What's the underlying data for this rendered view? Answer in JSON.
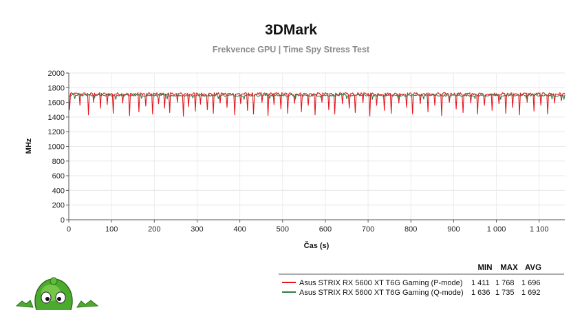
{
  "chart_data": {
    "type": "line",
    "title": "3DMark",
    "subtitle": "Frekvence GPU | Time Spy Stress Test",
    "xlabel": "Čas (s)",
    "ylabel": "MHz",
    "xlim": [
      0,
      1160
    ],
    "ylim": [
      0,
      2000
    ],
    "x_ticks": [
      0,
      100,
      200,
      300,
      400,
      500,
      600,
      700,
      800,
      900,
      1000,
      1100
    ],
    "x_tick_labels": [
      "0",
      "100",
      "200",
      "300",
      "400",
      "500",
      "600",
      "700",
      "800",
      "900",
      "1 000",
      "1 100"
    ],
    "y_ticks": [
      0,
      200,
      400,
      600,
      800,
      1000,
      1200,
      1400,
      1600,
      1800,
      2000
    ],
    "y_tick_labels": [
      "0",
      "200",
      "400",
      "600",
      "800",
      "1000",
      "1200",
      "1400",
      "1600",
      "1800",
      "2000"
    ],
    "grid": true,
    "legend_position": "bottom-right",
    "legend_columns": [
      "MIN",
      "MAX",
      "AVG"
    ],
    "series": [
      {
        "name": "Asus STRIX RX 5600 XT T6G Gaming (P-mode)",
        "color": "#e8141b",
        "min": 1411,
        "max": 1768,
        "avg": 1696,
        "min_label": "1 411",
        "max_label": "1 768",
        "avg_label": "1 696",
        "x_range": [
          0,
          1160
        ],
        "x_step": 2,
        "baseline": 1715,
        "jitter": 18,
        "dips": [
          [
            3,
            1500
          ],
          [
            27,
            1560
          ],
          [
            47,
            1430
          ],
          [
            58,
            1600
          ],
          [
            74,
            1520
          ],
          [
            90,
            1570
          ],
          [
            105,
            1450
          ],
          [
            127,
            1590
          ],
          [
            143,
            1420
          ],
          [
            164,
            1470
          ],
          [
            180,
            1550
          ],
          [
            197,
            1440
          ],
          [
            210,
            1580
          ],
          [
            225,
            1520
          ],
          [
            236,
            1460
          ],
          [
            255,
            1600
          ],
          [
            268,
            1410
          ],
          [
            281,
            1540
          ],
          [
            297,
            1480
          ],
          [
            308,
            1575
          ],
          [
            325,
            1500
          ],
          [
            339,
            1450
          ],
          [
            354,
            1590
          ],
          [
            371,
            1530
          ],
          [
            388,
            1430
          ],
          [
            402,
            1580
          ],
          [
            418,
            1490
          ],
          [
            433,
            1440
          ],
          [
            452,
            1600
          ],
          [
            466,
            1420
          ],
          [
            481,
            1570
          ],
          [
            497,
            1510
          ],
          [
            513,
            1450
          ],
          [
            529,
            1585
          ],
          [
            545,
            1470
          ],
          [
            560,
            1560
          ],
          [
            576,
            1430
          ],
          [
            592,
            1600
          ],
          [
            608,
            1500
          ],
          [
            622,
            1440
          ],
          [
            640,
            1580
          ],
          [
            656,
            1520
          ],
          [
            671,
            1460
          ],
          [
            688,
            1595
          ],
          [
            705,
            1410
          ],
          [
            721,
            1560
          ],
          [
            738,
            1490
          ],
          [
            755,
            1450
          ],
          [
            772,
            1590
          ],
          [
            790,
            1530
          ],
          [
            805,
            1440
          ],
          [
            822,
            1580
          ],
          [
            840,
            1470
          ],
          [
            856,
            1560
          ],
          [
            873,
            1420
          ],
          [
            891,
            1600
          ],
          [
            906,
            1510
          ],
          [
            923,
            1460
          ],
          [
            940,
            1590
          ],
          [
            956,
            1440
          ],
          [
            972,
            1560
          ],
          [
            990,
            1490
          ],
          [
            1006,
            1580
          ],
          [
            1023,
            1450
          ],
          [
            1039,
            1530
          ],
          [
            1055,
            1430
          ],
          [
            1072,
            1600
          ],
          [
            1088,
            1480
          ],
          [
            1104,
            1560
          ],
          [
            1120,
            1440
          ],
          [
            1137,
            1590
          ],
          [
            1152,
            1620
          ]
        ]
      },
      {
        "name": "Asus STRIX RX 5600 XT T6G Gaming (Q-mode)",
        "color": "#2d7d45",
        "min": 1636,
        "max": 1735,
        "avg": 1692,
        "min_label": "1 636",
        "max_label": "1 735",
        "avg_label": "1 692",
        "x_range": [
          0,
          1160
        ],
        "x_step": 2,
        "baseline": 1695,
        "jitter": 14,
        "dips": [
          [
            15,
            1650
          ],
          [
            60,
            1660
          ],
          [
            110,
            1640
          ],
          [
            170,
            1655
          ],
          [
            230,
            1645
          ],
          [
            290,
            1660
          ],
          [
            350,
            1650
          ],
          [
            410,
            1640
          ],
          [
            470,
            1655
          ],
          [
            530,
            1645
          ],
          [
            590,
            1660
          ],
          [
            650,
            1650
          ],
          [
            710,
            1640
          ],
          [
            770,
            1655
          ],
          [
            830,
            1645
          ],
          [
            890,
            1660
          ],
          [
            950,
            1650
          ],
          [
            1010,
            1640
          ],
          [
            1070,
            1655
          ],
          [
            1130,
            1645
          ],
          [
            1158,
            1640
          ]
        ]
      }
    ]
  }
}
